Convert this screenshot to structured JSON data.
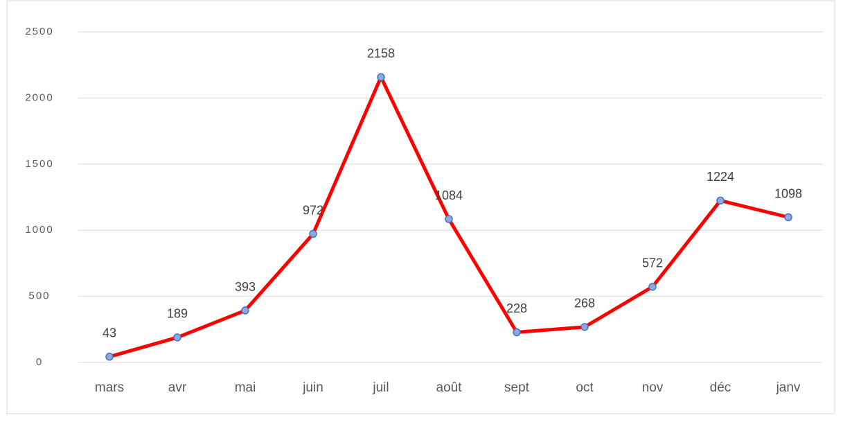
{
  "chart_data": {
    "type": "line",
    "categories": [
      "mars",
      "avr",
      "mai",
      "juin",
      "juil",
      "août",
      "sept",
      "oct",
      "nov",
      "déc",
      "janv"
    ],
    "series": [
      {
        "color": "#ff0000",
        "marker_color": "#8ea9db",
        "values": [
          43,
          189,
          393,
          972,
          2158,
          1084,
          228,
          268,
          572,
          1224,
          1098
        ]
      }
    ],
    "ylim": [
      0,
      2500
    ],
    "yticks": [
      0,
      500,
      1000,
      1500,
      2000,
      2500
    ],
    "grid": true
  }
}
